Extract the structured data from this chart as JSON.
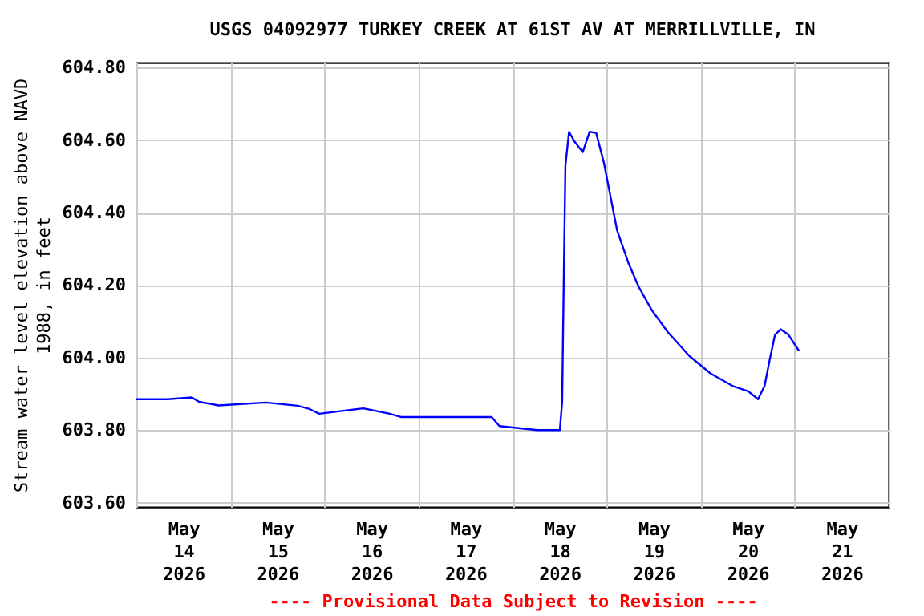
{
  "chart_data": {
    "type": "line",
    "title": "USGS 04092977 TURKEY CREEK AT 61ST AV AT MERRILLVILLE, IN",
    "ylabel": "Stream water level elevation above NAVD\n1988, in feet",
    "annotations": [
      "---- Provisional Data Subject to Revision ----"
    ],
    "x": [
      "2026-05-14T00:00",
      "2026-05-14T08:00",
      "2026-05-14T14:10",
      "2026-05-14T16:00",
      "2026-05-14T21:00",
      "2026-05-15T09:05",
      "2026-05-15T17:10",
      "2026-05-15T20:00",
      "2026-05-15T22:40",
      "2026-05-16T09:55",
      "2026-05-16T16:40",
      "2026-05-16T19:30",
      "2026-05-17T18:40",
      "2026-05-17T20:40",
      "2026-05-18T06:20",
      "2026-05-18T12:05",
      "2026-05-18T12:40",
      "2026-05-18T13:05",
      "2026-05-18T13:30",
      "2026-05-18T14:25",
      "2026-05-18T15:50",
      "2026-05-18T17:55",
      "2026-05-18T19:40",
      "2026-05-18T21:20",
      "2026-05-18T23:20",
      "2026-05-19T00:40",
      "2026-05-19T02:40",
      "2026-05-19T05:30",
      "2026-05-19T08:10",
      "2026-05-19T11:35",
      "2026-05-19T15:40",
      "2026-05-19T21:10",
      "2026-05-20T02:35",
      "2026-05-20T08:05",
      "2026-05-20T12:10",
      "2026-05-20T14:40",
      "2026-05-20T16:20",
      "2026-05-20T17:40",
      "2026-05-20T19:00",
      "2026-05-20T20:25",
      "2026-05-20T22:25",
      "2026-05-21T01:05"
    ],
    "series": [
      {
        "color": "#0000ff",
        "values": [
          603.885,
          603.885,
          603.89,
          603.878,
          603.868,
          603.876,
          603.867,
          603.859,
          603.845,
          603.86,
          603.845,
          603.836,
          603.836,
          603.811,
          603.8,
          603.8,
          603.878,
          604.219,
          604.53,
          604.623,
          604.596,
          604.567,
          604.623,
          604.62,
          604.537,
          604.463,
          604.352,
          604.263,
          604.196,
          604.13,
          604.07,
          604.004,
          603.956,
          603.922,
          603.907,
          603.885,
          603.922,
          603.996,
          604.063,
          604.078,
          604.063,
          604.019
        ]
      }
    ],
    "xlim": [
      "2026-05-14T00:00",
      "2026-05-22T00:00"
    ],
    "xticks": [
      {
        "value": "2026-05-14T00:00",
        "label": null
      },
      {
        "value": "2026-05-14T12:00",
        "label": "May\n14\n2026"
      },
      {
        "value": "2026-05-15T00:00",
        "label": null
      },
      {
        "value": "2026-05-15T12:00",
        "label": "May\n15\n2026"
      },
      {
        "value": "2026-05-16T00:00",
        "label": null
      },
      {
        "value": "2026-05-16T12:00",
        "label": "May\n16\n2026"
      },
      {
        "value": "2026-05-17T00:00",
        "label": null
      },
      {
        "value": "2026-05-17T12:00",
        "label": "May\n17\n2026"
      },
      {
        "value": "2026-05-18T00:00",
        "label": null
      },
      {
        "value": "2026-05-18T12:00",
        "label": "May\n18\n2026"
      },
      {
        "value": "2026-05-19T00:00",
        "label": null
      },
      {
        "value": "2026-05-19T12:00",
        "label": "May\n19\n2026"
      },
      {
        "value": "2026-05-20T00:00",
        "label": null
      },
      {
        "value": "2026-05-20T12:00",
        "label": "May\n20\n2026"
      },
      {
        "value": "2026-05-21T00:00",
        "label": null
      },
      {
        "value": "2026-05-21T12:00",
        "label": "May\n21\n2026"
      },
      {
        "value": "2026-05-22T00:00",
        "label": null
      }
    ],
    "ylim": [
      603.588,
      604.814
    ],
    "yticks": [
      {
        "value": 603.6,
        "label": "603.60"
      },
      {
        "value": 603.8,
        "label": "603.80"
      },
      {
        "value": 604.0,
        "label": "604.00"
      },
      {
        "value": 604.2,
        "label": "604.20"
      },
      {
        "value": 604.4,
        "label": "604.40"
      },
      {
        "value": 604.6,
        "label": "604.60"
      },
      {
        "value": 604.8,
        "label": "604.80"
      }
    ],
    "grid": true,
    "marker": "none",
    "line_style": "solid"
  }
}
